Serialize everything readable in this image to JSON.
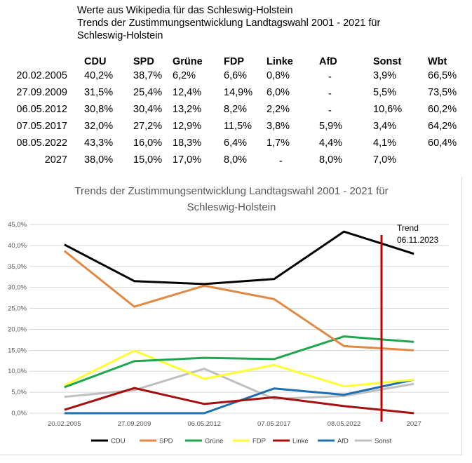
{
  "header": {
    "line1": "Werte aus Wikipedia für das Schleswig-Holstein",
    "line2": "Trends der Zustimmungsentwicklung Landtagswahl 2001 - 2021 für",
    "line3": "Schleswig-Holstein"
  },
  "table": {
    "columns": [
      "CDU",
      "SPD",
      "Grüne",
      "FDP",
      "Linke",
      "AfD",
      "Sonst",
      "Wbt"
    ],
    "rows": [
      {
        "date": "20.02.2005",
        "cells": [
          "40,2%",
          "38,7%",
          "6,2%",
          "6,6%",
          "0,8%",
          "-",
          "3,9%",
          "66,5%"
        ]
      },
      {
        "date": "27.09.2009",
        "cells": [
          "31,5%",
          "25,4%",
          "12,4%",
          "14,9%",
          "6,0%",
          "-",
          "5,5%",
          "73,5%"
        ]
      },
      {
        "date": "06.05.2012",
        "cells": [
          "30,8%",
          "30,4%",
          "13,2%",
          "8,2%",
          "2,2%",
          "-",
          "10,6%",
          "60,2%"
        ]
      },
      {
        "date": "07.05.2017",
        "cells": [
          "32,0%",
          "27,2%",
          "12,9%",
          "11,5%",
          "3,8%",
          "5,9%",
          "3,4%",
          "64,2%"
        ]
      },
      {
        "date": "08.05.2022",
        "cells": [
          "43,3%",
          "16,0%",
          "18,3%",
          "6,4%",
          "1,7%",
          "4,4%",
          "4,1%",
          "60,4%"
        ]
      },
      {
        "date": "2027",
        "cells": [
          "38,0%",
          "15,0%",
          "17,0%",
          "8,0%",
          "-",
          "8,0%",
          "7,0%",
          ""
        ]
      }
    ]
  },
  "chart_data": {
    "type": "line",
    "title_line1": "Trends der Zustimmungsentwicklung Landtagswahl 2001 - 2021 für",
    "title_line2": "Schleswig-Holstein",
    "categories": [
      "20.02.2005",
      "27.09.2009",
      "06.05.2012",
      "07.05.2017",
      "08.05.2022",
      "2027"
    ],
    "ylim": [
      0,
      45
    ],
    "yticks": [
      "0,0%",
      "5,0%",
      "10,0%",
      "15,0%",
      "20,0%",
      "25,0%",
      "30,0%",
      "35,0%",
      "40,0%",
      "45,0%"
    ],
    "grid": true,
    "legend_position": "bottom",
    "series": [
      {
        "name": "CDU",
        "color": "#000000",
        "values": [
          40.2,
          31.5,
          30.8,
          32.0,
          43.3,
          38.0
        ]
      },
      {
        "name": "SPD",
        "color": "#e08a45",
        "values": [
          38.7,
          25.4,
          30.4,
          27.2,
          16.0,
          15.0
        ]
      },
      {
        "name": "Grüne",
        "color": "#1ea84e",
        "values": [
          6.2,
          12.4,
          13.2,
          12.9,
          18.3,
          17.0
        ]
      },
      {
        "name": "FDP",
        "color": "#ffff33",
        "values": [
          6.6,
          14.9,
          8.2,
          11.5,
          6.4,
          8.0
        ]
      },
      {
        "name": "Linke",
        "color": "#a50f0f",
        "values": [
          0.8,
          6.0,
          2.2,
          3.8,
          1.7,
          0.0
        ]
      },
      {
        "name": "AfD",
        "color": "#1f6fb0",
        "values": [
          0.0,
          0.0,
          0.0,
          5.9,
          4.4,
          8.0
        ]
      },
      {
        "name": "Sonst",
        "color": "#bfbfbf",
        "values": [
          3.9,
          5.5,
          10.6,
          3.4,
          4.1,
          7.0
        ]
      }
    ],
    "annotation": {
      "line1": "Trend",
      "line2": "06.11.2023",
      "color": "#c00000"
    }
  }
}
